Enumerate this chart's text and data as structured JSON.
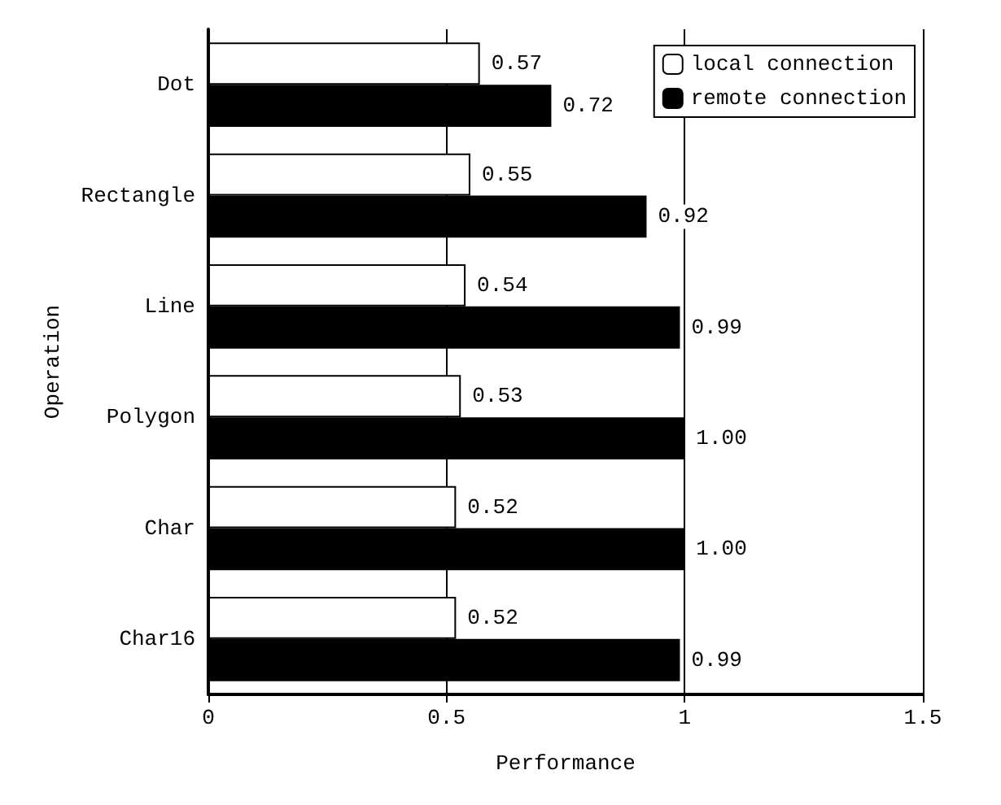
{
  "chart_data": {
    "type": "bar",
    "orientation": "horizontal",
    "xlabel": "Performance",
    "ylabel": "Operation",
    "categories": [
      "Dot",
      "Rectangle",
      "Line",
      "Polygon",
      "Char",
      "Char16"
    ],
    "series": [
      {
        "name": "local connection",
        "color": "#ffffff",
        "values": [
          0.57,
          0.55,
          0.54,
          0.53,
          0.52,
          0.52
        ],
        "value_labels": [
          "0.57",
          "0.55",
          "0.54",
          "0.53",
          "0.52",
          "0.52"
        ]
      },
      {
        "name": "remote connection",
        "color": "#000000",
        "values": [
          0.72,
          0.92,
          0.99,
          1.0,
          1.0,
          0.99
        ],
        "value_labels": [
          "0.72",
          "0.92",
          "0.99",
          "1.00",
          "1.00",
          "0.99"
        ]
      }
    ],
    "xlim": [
      0,
      1.5
    ],
    "xticks": [
      0,
      0.5,
      1,
      1.5
    ],
    "grid": "x",
    "legend": "top right"
  }
}
